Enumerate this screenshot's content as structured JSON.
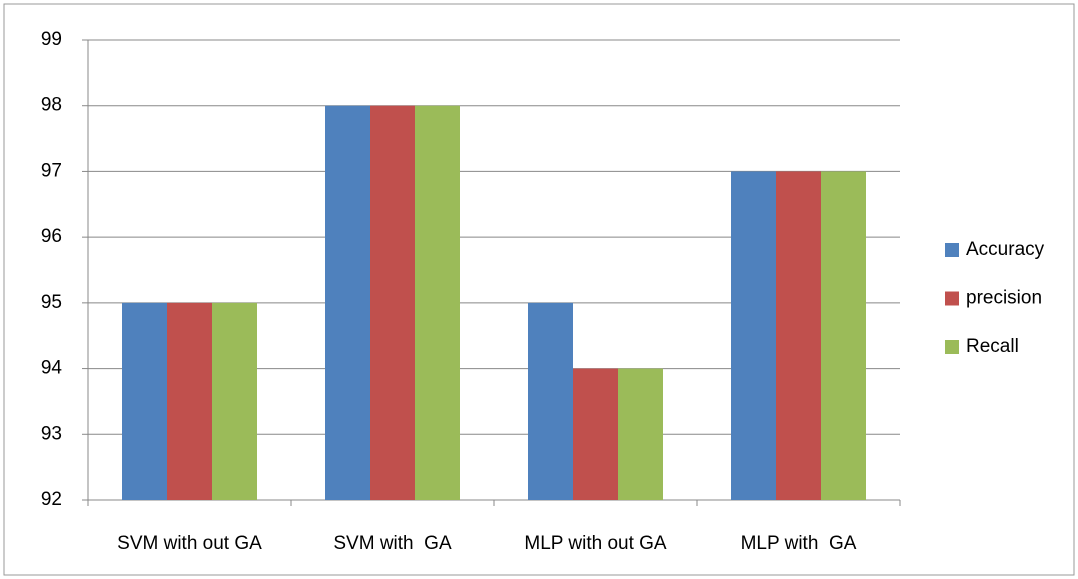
{
  "chart_data": {
    "type": "bar",
    "categories": [
      "SVM with out GA",
      "SVM with  GA",
      "MLP with out GA",
      "MLP with  GA"
    ],
    "series": [
      {
        "name": "Accuracy",
        "color": "#4f81bd",
        "values": [
          95,
          98,
          95,
          97
        ]
      },
      {
        "name": "precision",
        "color": "#c0504d",
        "values": [
          95,
          98,
          94,
          97
        ]
      },
      {
        "name": "Recall",
        "color": "#9bbb59",
        "values": [
          95,
          98,
          94,
          97
        ]
      }
    ],
    "ylim": [
      92,
      99
    ],
    "yticks": [
      92,
      93,
      94,
      95,
      96,
      97,
      98,
      99
    ],
    "grid": true,
    "legend": "right"
  }
}
